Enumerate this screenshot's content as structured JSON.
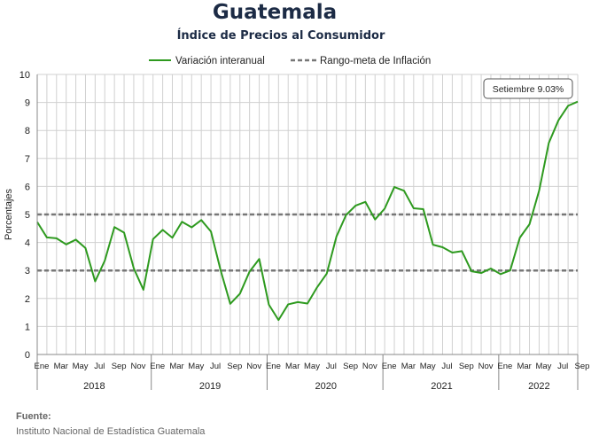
{
  "chart_data": {
    "type": "line",
    "title": "Guatemala",
    "subtitle": "Índice de Precios al Consumidor",
    "ylabel": "Porcentajes",
    "ylim": [
      0,
      10
    ],
    "yticks": [
      "0",
      "1",
      "2",
      "3",
      "4",
      "5",
      "6",
      "7",
      "8",
      "9",
      "10"
    ],
    "grid": true,
    "legend_position": "top",
    "month_labels": [
      "Ene",
      "Mar",
      "May",
      "Jul",
      "Sep",
      "Nov"
    ],
    "last_year_month_labels": [
      "Ene",
      "Mar",
      "May",
      "Jul",
      "Sep"
    ],
    "years": [
      "2018",
      "2019",
      "2020",
      "2021",
      "2022"
    ],
    "series": [
      {
        "name": "Variación interanual",
        "color": "#2e9a1f",
        "start": "2018-01",
        "values": [
          4.73,
          4.18,
          4.15,
          3.93,
          4.1,
          3.8,
          2.61,
          3.35,
          4.55,
          4.35,
          3.08,
          2.31,
          4.12,
          4.45,
          4.17,
          4.74,
          4.54,
          4.8,
          4.39,
          3.01,
          1.81,
          2.17,
          2.96,
          3.41,
          1.78,
          1.23,
          1.79,
          1.87,
          1.82,
          2.4,
          2.89,
          4.21,
          4.98,
          5.32,
          5.45,
          4.82,
          5.21,
          5.98,
          5.85,
          5.22,
          5.19,
          3.92,
          3.83,
          3.64,
          3.69,
          2.97,
          2.91,
          3.07,
          2.87,
          3.0,
          4.17,
          4.65,
          5.85,
          7.55,
          8.36,
          8.88,
          9.03
        ]
      },
      {
        "name": "Rango-meta de Inflación",
        "color": "#777777",
        "style": "dashed",
        "values": [
          3,
          5
        ]
      }
    ],
    "annotation": "Setiembre 9.03%"
  },
  "source": {
    "label": "Fuente:",
    "text": "Instituto Nacional de Estadística Guatemala"
  }
}
